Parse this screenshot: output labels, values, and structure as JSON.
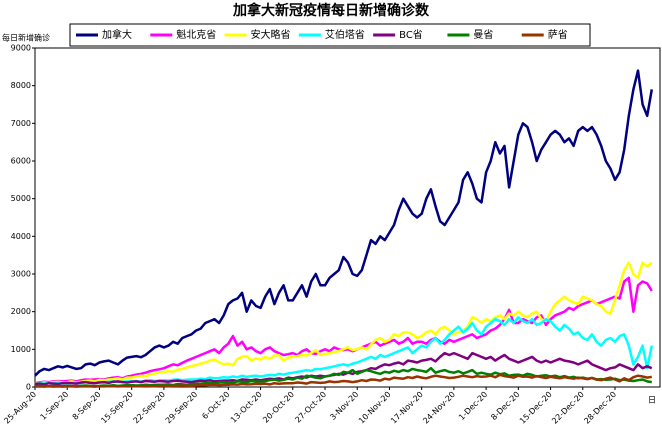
{
  "chart_data": {
    "type": "line",
    "title": "加拿大新冠疫情每日新增确诊数",
    "ylabel": "每日新增确诊",
    "xlabel": "日",
    "ylim": [
      0,
      9000
    ],
    "yticks": [
      0,
      1000,
      2000,
      3000,
      4000,
      5000,
      6000,
      7000,
      8000,
      9000
    ],
    "categories": [
      "25-Aug-20",
      null,
      null,
      null,
      null,
      null,
      null,
      "1-Sep-20",
      null,
      null,
      null,
      null,
      null,
      null,
      "8-Sep-20",
      null,
      null,
      null,
      null,
      null,
      null,
      "15-Sep-20",
      null,
      null,
      null,
      null,
      null,
      null,
      "22-Sep-20",
      null,
      null,
      null,
      null,
      null,
      null,
      "29-Sep-20",
      null,
      null,
      null,
      null,
      null,
      null,
      "6-Oct-20",
      null,
      null,
      null,
      null,
      null,
      null,
      "13-Oct-20",
      null,
      null,
      null,
      null,
      null,
      null,
      "20-Oct-20",
      null,
      null,
      null,
      null,
      null,
      null,
      "27-Oct-20",
      null,
      null,
      null,
      null,
      null,
      null,
      "3-Nov-20",
      null,
      null,
      null,
      null,
      null,
      null,
      "10-Nov-20",
      null,
      null,
      null,
      null,
      null,
      null,
      "17-Nov-20",
      null,
      null,
      null,
      null,
      null,
      null,
      "24-Nov-20",
      null,
      null,
      null,
      null,
      null,
      null,
      "1-Dec-20",
      null,
      null,
      null,
      null,
      null,
      null,
      "8-Dec-20",
      null,
      null,
      null,
      null,
      null,
      null,
      "15-Dec-20",
      null,
      null,
      null,
      null,
      null,
      null,
      "22-Dec-20",
      null,
      null,
      null,
      null,
      null,
      null,
      "28-Dec-20",
      null,
      null,
      null,
      null,
      null,
      null,
      null,
      null
    ],
    "series": [
      {
        "name": "加拿大",
        "color": "#000080",
        "values": [
          300,
          420,
          480,
          450,
          500,
          550,
          520,
          560,
          520,
          480,
          500,
          600,
          620,
          580,
          650,
          680,
          700,
          650,
          600,
          700,
          780,
          800,
          820,
          790,
          850,
          950,
          1050,
          1100,
          1050,
          1100,
          1200,
          1150,
          1300,
          1350,
          1400,
          1500,
          1550,
          1700,
          1750,
          1800,
          1700,
          1900,
          2200,
          2300,
          2350,
          2500,
          2000,
          2300,
          2150,
          2100,
          2400,
          2600,
          2200,
          2500,
          2700,
          2300,
          2300,
          2500,
          2700,
          2400,
          2800,
          3000,
          2700,
          2700,
          2900,
          3000,
          3100,
          3450,
          3300,
          3000,
          2950,
          3100,
          3500,
          3900,
          3800,
          4000,
          3900,
          4100,
          4300,
          4700,
          5000,
          4800,
          4600,
          4500,
          4600,
          5000,
          5250,
          4800,
          4400,
          4300,
          4500,
          4700,
          4900,
          5500,
          5700,
          5400,
          5000,
          4900,
          5700,
          6000,
          6500,
          6200,
          6400,
          5300,
          6000,
          6700,
          7000,
          6900,
          6500,
          6000,
          6300,
          6500,
          6700,
          6800,
          6700,
          6500,
          6600,
          6400,
          6800,
          6900,
          6800,
          6900,
          6700,
          6400,
          6000,
          5800,
          5500,
          5700,
          6300,
          7200,
          7900,
          8400,
          7500,
          7200,
          7900
        ]
      },
      {
        "name": "魁北克省",
        "color": "#ff00ff",
        "values": [
          100,
          120,
          140,
          130,
          150,
          160,
          150,
          160,
          170,
          150,
          180,
          200,
          190,
          200,
          210,
          200,
          230,
          250,
          260,
          230,
          280,
          300,
          330,
          350,
          380,
          420,
          450,
          470,
          500,
          550,
          600,
          580,
          640,
          700,
          750,
          800,
          850,
          900,
          950,
          1000,
          900,
          1050,
          1150,
          1350,
          1100,
          1200,
          1000,
          1050,
          950,
          900,
          1000,
          1050,
          950,
          900,
          850,
          870,
          900,
          850,
          950,
          1000,
          900,
          880,
          950,
          1000,
          950,
          1050,
          1000,
          980,
          1000,
          950,
          1000,
          1050,
          1100,
          1150,
          1200,
          1100,
          1150,
          1200,
          1250,
          1150,
          1200,
          1300,
          1150,
          1200,
          1200,
          1150,
          1250,
          1300,
          1200,
          1150,
          1250,
          1200,
          1250,
          1300,
          1350,
          1400,
          1300,
          1350,
          1400,
          1500,
          1550,
          1650,
          1800,
          2050,
          1700,
          1700,
          1800,
          1750,
          1700,
          1850,
          1900,
          1650,
          1800,
          1900,
          1950,
          2000,
          2100,
          2050,
          2150,
          2200,
          2250,
          2300,
          2200,
          2250,
          2300,
          2350,
          2400,
          2350,
          2800,
          2900,
          2000,
          2700,
          2800,
          2750,
          2550
        ]
      },
      {
        "name": "安大略省",
        "color": "#ffff00",
        "values": [
          90,
          100,
          120,
          110,
          130,
          140,
          120,
          130,
          150,
          120,
          140,
          160,
          170,
          150,
          190,
          180,
          200,
          210,
          230,
          200,
          250,
          250,
          280,
          300,
          290,
          330,
          360,
          380,
          400,
          420,
          410,
          460,
          480,
          520,
          560,
          580,
          620,
          650,
          700,
          730,
          650,
          600,
          620,
          580,
          750,
          800,
          820,
          700,
          760,
          730,
          800,
          750,
          830,
          850,
          700,
          780,
          800,
          820,
          850,
          840,
          900,
          980,
          850,
          880,
          900,
          930,
          950,
          1000,
          1050,
          980,
          1000,
          1050,
          1000,
          1130,
          1250,
          1300,
          1200,
          1250,
          1400,
          1350,
          1450,
          1450,
          1400,
          1300,
          1350,
          1450,
          1500,
          1400,
          1550,
          1600,
          1500,
          1400,
          1450,
          1500,
          1600,
          1850,
          1800,
          1700,
          1800,
          1750,
          1850,
          1900,
          1800,
          1950,
          1900,
          2000,
          1900,
          1850,
          1950,
          2000,
          1800,
          1750,
          2000,
          2200,
          2300,
          2400,
          2300,
          2250,
          2200,
          2400,
          2350,
          2300,
          2200,
          2150,
          2000,
          1950,
          2300,
          2700,
          3100,
          3300,
          3000,
          2900,
          3300,
          3200,
          3300
        ]
      },
      {
        "name": "艾伯塔省",
        "color": "#00ffff",
        "values": [
          80,
          100,
          90,
          110,
          100,
          120,
          90,
          100,
          110,
          120,
          100,
          130,
          120,
          110,
          130,
          120,
          140,
          150,
          130,
          140,
          150,
          150,
          160,
          140,
          170,
          180,
          160,
          170,
          180,
          170,
          190,
          200,
          180,
          190,
          200,
          200,
          220,
          210,
          250,
          230,
          240,
          260,
          250,
          280,
          260,
          300,
          270,
          290,
          300,
          280,
          300,
          320,
          310,
          350,
          330,
          360,
          380,
          400,
          420,
          450,
          430,
          480,
          470,
          500,
          520,
          550,
          580,
          600,
          570,
          620,
          650,
          700,
          750,
          800,
          750,
          850,
          800,
          850,
          900,
          950,
          1000,
          1050,
          900,
          1000,
          1100,
          1050,
          1200,
          1300,
          1150,
          1250,
          1400,
          1500,
          1600,
          1450,
          1550,
          1700,
          1500,
          1400,
          1600,
          1700,
          1800,
          1750,
          1650,
          1800,
          1700,
          1850,
          1750,
          1700,
          1800,
          1650,
          1700,
          1800,
          1750,
          1600,
          1500,
          1650,
          1550,
          1400,
          1450,
          1300,
          1250,
          1400,
          1200,
          1100,
          1250,
          1300,
          1200,
          1350,
          1400,
          1100,
          600,
          800,
          1100,
          500,
          1100
        ]
      },
      {
        "name": "BC省",
        "color": "#800080",
        "values": [
          80,
          90,
          70,
          100,
          90,
          80,
          100,
          110,
          100,
          90,
          120,
          130,
          110,
          100,
          120,
          130,
          110,
          140,
          150,
          130,
          120,
          140,
          150,
          130,
          160,
          150,
          140,
          160,
          150,
          140,
          160,
          170,
          150,
          140,
          130,
          150,
          170,
          160,
          180,
          150,
          160,
          170,
          170,
          180,
          160,
          200,
          190,
          180,
          200,
          180,
          200,
          220,
          210,
          230,
          200,
          250,
          230,
          260,
          280,
          250,
          300,
          280,
          300,
          280,
          300,
          320,
          350,
          330,
          380,
          350,
          400,
          420,
          450,
          500,
          480,
          550,
          600,
          580,
          620,
          650,
          600,
          700,
          680,
          650,
          700,
          720,
          750,
          680,
          800,
          900,
          850,
          900,
          850,
          800,
          750,
          900,
          850,
          800,
          750,
          800,
          700,
          780,
          850,
          750,
          700,
          650,
          700,
          750,
          800,
          700,
          650,
          700,
          650,
          700,
          750,
          700,
          680,
          650,
          600,
          650,
          700,
          600,
          550,
          500,
          450,
          500,
          520,
          600,
          550,
          500,
          450,
          600,
          500,
          550,
          500
        ]
      },
      {
        "name": "曼省",
        "color": "#008000",
        "values": [
          20,
          30,
          25,
          20,
          30,
          25,
          20,
          30,
          25,
          20,
          30,
          40,
          30,
          25,
          30,
          40,
          35,
          45,
          30,
          40,
          50,
          50,
          40,
          45,
          60,
          50,
          55,
          60,
          60,
          70,
          50,
          80,
          70,
          60,
          80,
          80,
          90,
          100,
          110,
          90,
          120,
          130,
          100,
          120,
          150,
          140,
          130,
          160,
          150,
          140,
          160,
          180,
          200,
          170,
          190,
          220,
          200,
          250,
          220,
          300,
          280,
          250,
          230,
          280,
          300,
          350,
          320,
          400,
          380,
          450,
          350,
          400,
          450,
          420,
          380,
          350,
          400,
          380,
          430,
          400,
          450,
          420,
          480,
          450,
          430,
          400,
          500,
          380,
          420,
          450,
          400,
          380,
          420,
          360,
          400,
          450,
          350,
          380,
          350,
          330,
          380,
          340,
          360,
          300,
          320,
          330,
          300,
          350,
          320,
          280,
          300,
          310,
          280,
          300,
          260,
          290,
          250,
          270,
          230,
          250,
          220,
          240,
          200,
          210,
          190,
          200,
          220,
          180,
          200,
          170,
          160,
          180,
          200,
          150,
          130
        ]
      },
      {
        "name": "萨省",
        "color": "#993300",
        "values": [
          10,
          15,
          10,
          20,
          10,
          15,
          10,
          15,
          20,
          10,
          15,
          20,
          15,
          10,
          20,
          15,
          25,
          20,
          15,
          20,
          25,
          20,
          25,
          20,
          30,
          25,
          20,
          30,
          30,
          25,
          35,
          30,
          40,
          35,
          30,
          40,
          50,
          45,
          55,
          60,
          50,
          55,
          60,
          70,
          65,
          80,
          70,
          75,
          85,
          80,
          90,
          70,
          100,
          85,
          95,
          100,
          100,
          120,
          110,
          90,
          130,
          120,
          110,
          120,
          150,
          130,
          140,
          160,
          150,
          130,
          150,
          180,
          160,
          200,
          190,
          170,
          220,
          200,
          250,
          230,
          220,
          260,
          240,
          280,
          250,
          230,
          270,
          300,
          280,
          260,
          240,
          250,
          270,
          300,
          280,
          260,
          290,
          270,
          280,
          300,
          260,
          320,
          290,
          270,
          250,
          300,
          270,
          280,
          250,
          290,
          260,
          240,
          270,
          250,
          230,
          260,
          240,
          220,
          250,
          230,
          210,
          240,
          200,
          180,
          220,
          250,
          200,
          150,
          230,
          180,
          260,
          300,
          280,
          250,
          270
        ]
      }
    ]
  }
}
